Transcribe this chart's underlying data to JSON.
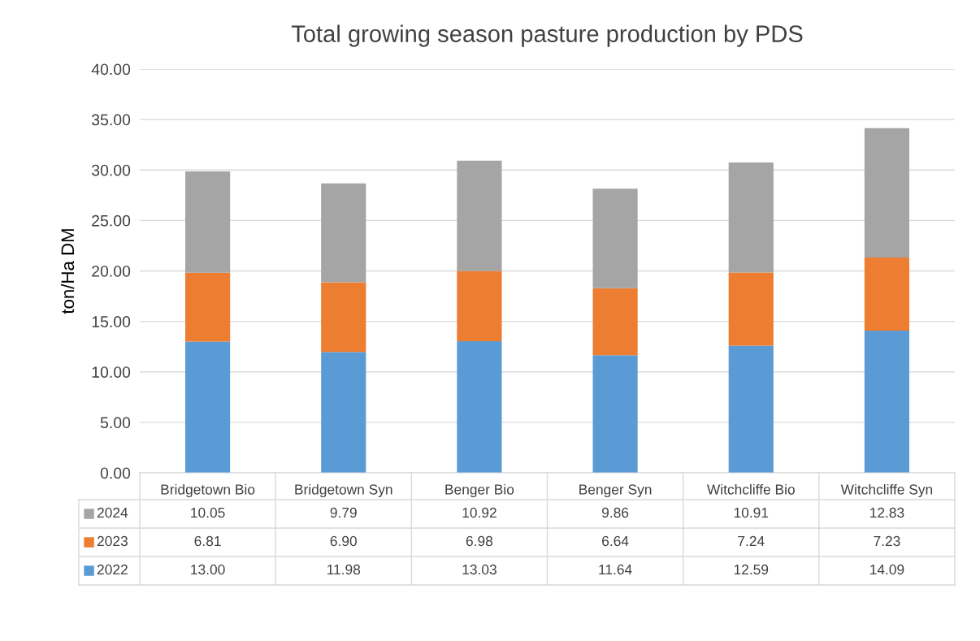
{
  "chart_data": {
    "type": "bar",
    "stacked": true,
    "title": "Total growing season pasture production by PDS",
    "ylabel": "ton/Ha DM",
    "categories": [
      "Bridgetown Bio",
      "Bridgetown Syn",
      "Benger Bio",
      "Benger Syn",
      "Witchcliffe Bio",
      "Witchcliffe Syn"
    ],
    "series": [
      {
        "name": "2022",
        "color": "#5b9bd5",
        "values": [
          13.0,
          11.98,
          13.03,
          11.64,
          12.59,
          14.09
        ],
        "value_labels": [
          "13.00",
          "11.98",
          "13.03",
          "11.64",
          "12.59",
          "14.09"
        ]
      },
      {
        "name": "2023",
        "color": "#ed7d31",
        "values": [
          6.81,
          6.9,
          6.98,
          6.64,
          7.24,
          7.23
        ],
        "value_labels": [
          "6.81",
          "6.90",
          "6.98",
          "6.64",
          "7.24",
          "7.23"
        ]
      },
      {
        "name": "2024",
        "color": "#a5a5a5",
        "values": [
          10.05,
          9.79,
          10.92,
          9.86,
          10.91,
          12.83
        ],
        "value_labels": [
          "10.05",
          "9.79",
          "10.92",
          "9.86",
          "10.91",
          "12.83"
        ]
      }
    ],
    "ylim": [
      0,
      40
    ],
    "yticks": [
      {
        "value": 0,
        "label": "0.00"
      },
      {
        "value": 5,
        "label": "5.00"
      },
      {
        "value": 10,
        "label": "10.00"
      },
      {
        "value": 15,
        "label": "15.00"
      },
      {
        "value": 20,
        "label": "20.00"
      },
      {
        "value": 25,
        "label": "25.00"
      },
      {
        "value": 30,
        "label": "30.00"
      },
      {
        "value": 35,
        "label": "35.00"
      },
      {
        "value": 40,
        "label": "40.00"
      }
    ],
    "grid": "y",
    "legend": "bottom"
  }
}
